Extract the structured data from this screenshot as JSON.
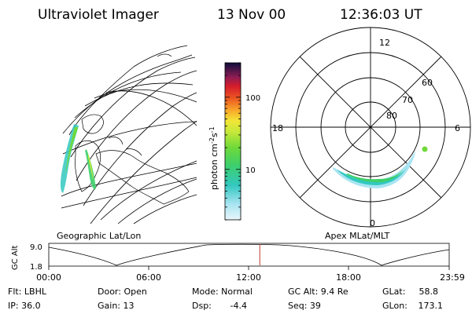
{
  "header": {
    "instrument": "Ultraviolet Imager",
    "date": "13 Nov 00",
    "time": "12:36:03 UT"
  },
  "colorbar": {
    "label": "photon cm",
    "label_exp": "-2",
    "label_unit2": "s",
    "label_exp2": "-1",
    "ticks": [
      {
        "label": "100",
        "value": 100
      },
      {
        "label": "10",
        "value": 10
      }
    ]
  },
  "left_panel": {
    "caption": "Geographic Lat/Lon"
  },
  "right_panel": {
    "caption": "Apex MLat/MLT",
    "mlt_labels": {
      "top": "12",
      "left": "18",
      "right": "6",
      "bottom": "0"
    },
    "lat_labels": [
      "60",
      "70",
      "80"
    ]
  },
  "timeline": {
    "ylabel": "GC Alt",
    "y_ticks": [
      "9.0",
      "1.8"
    ],
    "x_ticks": [
      "00:00",
      "06:00",
      "12:00",
      "18:00",
      "23:59"
    ],
    "current_time_fraction": 0.527,
    "marker_color": "#c0392b"
  },
  "status": {
    "row1": {
      "flt": "Flt: LBHL",
      "door": "Door: Open",
      "mode": "Mode: Normal",
      "gcalt": "GC Alt: 9.4 Re",
      "glat_label": "GLat:",
      "glat_value": "58.8"
    },
    "row2": {
      "ip": "IP: 36.0",
      "gain": "Gain: 13",
      "dsp_label": "Dsp:",
      "dsp_value": "-4.4",
      "seq": "Seq: 39",
      "glon_label": "GLon:",
      "glon_value": "173.1"
    }
  }
}
